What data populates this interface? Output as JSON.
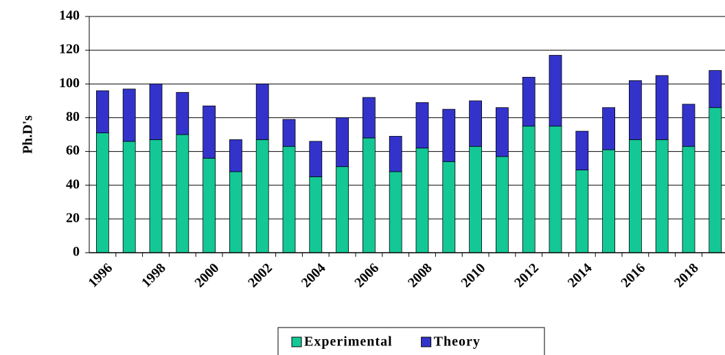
{
  "chart_data": {
    "type": "stacked_bar",
    "y_label": "Ph.D's",
    "categories": [
      "1996",
      null,
      "1998",
      null,
      "2000",
      null,
      "2002",
      null,
      "2004",
      null,
      "2006",
      null,
      "2008",
      null,
      "2010",
      null,
      "2012",
      null,
      "2014",
      null,
      "2016",
      null,
      "2018",
      null
    ],
    "series": [
      {
        "name": "Experimental",
        "color": "#14c896",
        "values": [
          71,
          66,
          67,
          70,
          56,
          48,
          67,
          63,
          45,
          51,
          68,
          48,
          62,
          54,
          63,
          57,
          75,
          75,
          49,
          61,
          67,
          67,
          63,
          86
        ]
      },
      {
        "name": "Theory",
        "color": "#3333cc",
        "values": [
          25,
          31,
          33,
          25,
          31,
          19,
          33,
          16,
          21,
          29,
          24,
          21,
          27,
          31,
          27,
          29,
          29,
          42,
          23,
          25,
          35,
          38,
          25,
          22
        ]
      }
    ],
    "ylim": [
      0,
      140
    ],
    "yticks": [
      0,
      20,
      40,
      60,
      80,
      100,
      120,
      140
    ],
    "grid": true,
    "legend": "bottom"
  }
}
